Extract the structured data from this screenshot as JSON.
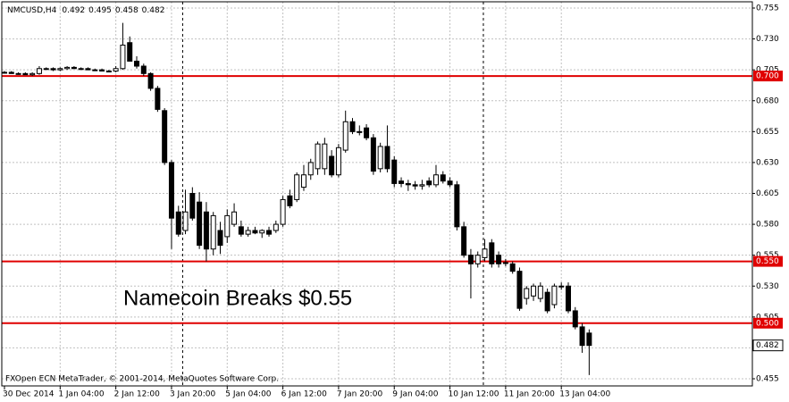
{
  "chart_data": {
    "type": "candlestick",
    "symbol": "NMCUSD,H4",
    "header_values": [
      0.492,
      0.495,
      0.458,
      0.482
    ],
    "annotation": "Namecoin Breaks $0.55",
    "footer": "FXOpen ECN MetaTrader, © 2001-2014, MetaQuotes Software Corp.",
    "categories": [
      "30 Dec 2014",
      null,
      null,
      null,
      null,
      null,
      null,
      null,
      "1 Jan 04:00",
      null,
      null,
      null,
      null,
      null,
      null,
      null,
      "2 Jan 12:00",
      null,
      null,
      null,
      null,
      null,
      null,
      null,
      "3 Jan 20:00",
      null,
      null,
      null,
      null,
      null,
      null,
      null,
      "5 Jan 04:00",
      null,
      null,
      null,
      null,
      null,
      null,
      null,
      "6 Jan 12:00",
      null,
      null,
      null,
      null,
      null,
      null,
      null,
      "7 Jan 20:00",
      null,
      null,
      null,
      null,
      null,
      null,
      null,
      "9 Jan 04:00",
      null,
      null,
      null,
      null,
      null,
      null,
      null,
      "10 Jan 12:00",
      null,
      null,
      null,
      null,
      null,
      null,
      null,
      "11 Jan 20:00",
      null,
      null,
      null,
      null,
      null,
      null,
      null,
      "13 Jan 04:00",
      null,
      null,
      null,
      null
    ],
    "candles": [
      [
        0.703,
        0.704,
        0.702,
        0.703
      ],
      [
        0.703,
        0.704,
        0.702,
        0.702
      ],
      [
        0.702,
        0.703,
        0.701,
        0.702
      ],
      [
        0.702,
        0.703,
        0.701,
        0.701
      ],
      [
        0.701,
        0.703,
        0.7,
        0.702
      ],
      [
        0.702,
        0.708,
        0.701,
        0.706
      ],
      [
        0.706,
        0.707,
        0.705,
        0.706
      ],
      [
        0.706,
        0.707,
        0.704,
        0.705
      ],
      [
        0.705,
        0.707,
        0.704,
        0.706
      ],
      [
        0.706,
        0.708,
        0.705,
        0.707
      ],
      [
        0.707,
        0.708,
        0.706,
        0.706
      ],
      [
        0.706,
        0.707,
        0.705,
        0.706
      ],
      [
        0.706,
        0.707,
        0.705,
        0.705
      ],
      [
        0.705,
        0.706,
        0.704,
        0.705
      ],
      [
        0.705,
        0.706,
        0.704,
        0.704
      ],
      [
        0.704,
        0.705,
        0.703,
        0.704
      ],
      [
        0.704,
        0.708,
        0.703,
        0.706
      ],
      [
        0.706,
        0.743,
        0.705,
        0.725
      ],
      [
        0.727,
        0.732,
        0.712,
        0.712
      ],
      [
        0.712,
        0.716,
        0.706,
        0.708
      ],
      [
        0.708,
        0.71,
        0.7,
        0.702
      ],
      [
        0.702,
        0.703,
        0.688,
        0.69
      ],
      [
        0.69,
        0.692,
        0.671,
        0.673
      ],
      [
        0.672,
        0.674,
        0.628,
        0.63
      ],
      [
        0.63,
        0.632,
        0.56,
        0.585
      ],
      [
        0.59,
        0.595,
        0.57,
        0.572
      ],
      [
        0.575,
        0.608,
        0.572,
        0.59
      ],
      [
        0.605,
        0.61,
        0.583,
        0.585
      ],
      [
        0.598,
        0.606,
        0.56,
        0.563
      ],
      [
        0.59,
        0.598,
        0.55,
        0.56
      ],
      [
        0.56,
        0.59,
        0.555,
        0.587
      ],
      [
        0.575,
        0.582,
        0.556,
        0.563
      ],
      [
        0.57,
        0.592,
        0.565,
        0.587
      ],
      [
        0.58,
        0.597,
        0.578,
        0.59
      ],
      [
        0.578,
        0.583,
        0.57,
        0.572
      ],
      [
        0.572,
        0.578,
        0.57,
        0.575
      ],
      [
        0.575,
        0.578,
        0.572,
        0.573
      ],
      [
        0.573,
        0.576,
        0.569,
        0.575
      ],
      [
        0.575,
        0.578,
        0.57,
        0.572
      ],
      [
        0.575,
        0.583,
        0.573,
        0.58
      ],
      [
        0.58,
        0.603,
        0.578,
        0.6
      ],
      [
        0.603,
        0.608,
        0.593,
        0.595
      ],
      [
        0.6,
        0.622,
        0.598,
        0.62
      ],
      [
        0.61,
        0.628,
        0.607,
        0.62
      ],
      [
        0.62,
        0.633,
        0.616,
        0.63
      ],
      [
        0.625,
        0.647,
        0.62,
        0.645
      ],
      [
        0.625,
        0.65,
        0.62,
        0.645
      ],
      [
        0.635,
        0.64,
        0.618,
        0.62
      ],
      [
        0.62,
        0.645,
        0.618,
        0.642
      ],
      [
        0.64,
        0.672,
        0.638,
        0.663
      ],
      [
        0.663,
        0.666,
        0.653,
        0.655
      ],
      [
        0.655,
        0.66,
        0.652,
        0.655
      ],
      [
        0.658,
        0.661,
        0.648,
        0.65
      ],
      [
        0.65,
        0.653,
        0.62,
        0.623
      ],
      [
        0.625,
        0.646,
        0.622,
        0.643
      ],
      [
        0.643,
        0.66,
        0.622,
        0.625
      ],
      [
        0.632,
        0.635,
        0.61,
        0.613
      ],
      [
        0.615,
        0.618,
        0.61,
        0.613
      ],
      [
        0.613,
        0.616,
        0.607,
        0.612
      ],
      [
        0.612,
        0.615,
        0.608,
        0.611
      ],
      [
        0.611,
        0.616,
        0.608,
        0.612
      ],
      [
        0.615,
        0.618,
        0.61,
        0.612
      ],
      [
        0.612,
        0.628,
        0.61,
        0.62
      ],
      [
        0.62,
        0.623,
        0.613,
        0.615
      ],
      [
        0.615,
        0.618,
        0.61,
        0.612
      ],
      [
        0.612,
        0.615,
        0.575,
        0.578
      ],
      [
        0.578,
        0.582,
        0.553,
        0.555
      ],
      [
        0.555,
        0.56,
        0.52,
        0.548
      ],
      [
        0.548,
        0.558,
        0.545,
        0.555
      ],
      [
        0.553,
        0.568,
        0.55,
        0.56
      ],
      [
        0.565,
        0.568,
        0.545,
        0.548
      ],
      [
        0.555,
        0.558,
        0.545,
        0.548
      ],
      [
        0.549,
        0.552,
        0.546,
        0.549
      ],
      [
        0.548,
        0.55,
        0.54,
        0.542
      ],
      [
        0.542,
        0.545,
        0.51,
        0.512
      ],
      [
        0.52,
        0.53,
        0.515,
        0.528
      ],
      [
        0.522,
        0.532,
        0.518,
        0.53
      ],
      [
        0.52,
        0.533,
        0.517,
        0.53
      ],
      [
        0.525,
        0.528,
        0.508,
        0.51
      ],
      [
        0.515,
        0.532,
        0.512,
        0.53
      ],
      [
        0.53,
        0.533,
        0.527,
        0.53
      ],
      [
        0.53,
        0.533,
        0.508,
        0.51
      ],
      [
        0.51,
        0.513,
        0.495,
        0.497
      ],
      [
        0.497,
        0.5,
        0.476,
        0.482
      ],
      [
        0.492,
        0.495,
        0.458,
        0.482
      ]
    ],
    "ylim": [
      0.455,
      0.755
    ],
    "yticks": [
      0.755,
      {
        "value": 0.73,
        "label": "0.730"
      },
      0.705,
      {
        "value": 0.68,
        "label": "0.680"
      },
      0.655,
      {
        "value": 0.63,
        "label": "0.630"
      },
      0.605,
      {
        "value": 0.58,
        "label": "0.580"
      },
      0.555,
      {
        "value": 0.53,
        "label": "0.530"
      },
      0.505,
      {
        "value": 0.48,
        "label": "0.480"
      },
      0.455
    ],
    "levels": [
      {
        "value": 0.7,
        "label": "0.700"
      },
      {
        "value": 0.55,
        "label": "0.550"
      },
      {
        "value": 0.5,
        "label": "0.500"
      }
    ],
    "level_color": "#e00000",
    "current_price": 0.482,
    "grid": true
  }
}
